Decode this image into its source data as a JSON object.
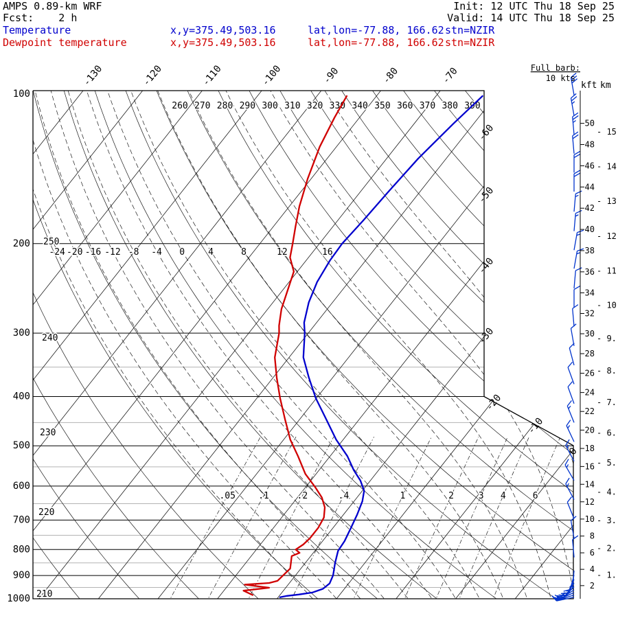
{
  "header": {
    "model": "AMPS 0.89-km WRF",
    "fcst": "Fcst:    2 h",
    "init": "Init: 12 UTC Thu 18 Sep 25",
    "valid": "Valid: 14 UTC Thu 18 Sep 25",
    "temp_label": "Temperature",
    "temp_xy": "x,y=375.49,503.16",
    "temp_latlon": "lat,lon=-77.88, 166.62",
    "temp_stn": "stn=NZIR",
    "dewp_label": "Dewpoint temperature",
    "dewp_xy": "x,y=375.49,503.16",
    "dewp_latlon": "lat,lon=-77.88, 166.62",
    "dewp_stn": "stn=NZIR"
  },
  "legend": {
    "full_barb": "Full barb:",
    "full_barb_value": "10 kts"
  },
  "axes": {
    "kft_label": "kft",
    "km_label": "km",
    "kft_ticks": [
      50,
      48,
      46,
      44,
      42,
      40,
      38,
      36,
      34,
      32,
      30,
      28,
      26,
      24,
      22,
      20,
      18,
      16,
      14,
      12,
      10,
      8,
      6,
      4,
      2
    ],
    "km_ticks": [
      15,
      14,
      13,
      12,
      11,
      10,
      9,
      8,
      7,
      6,
      5,
      4,
      3,
      2,
      1
    ]
  },
  "colors": {
    "temperature": "#0000cd",
    "dewpoint": "#d00000",
    "wind": "#0033cc",
    "grid": "#1a1a1a",
    "pressure_minor": "#b3b3b3"
  },
  "chart_data": {
    "type": "skewt-log-p",
    "station": "NZIR",
    "pressure_axis": {
      "unit": "hPa",
      "ticks": [
        100,
        200,
        300,
        400,
        500,
        600,
        700,
        800,
        900,
        1000
      ],
      "minor_ticks": [
        350,
        450,
        550,
        650,
        750,
        850,
        950
      ],
      "range": [
        100,
        1000
      ]
    },
    "temperature_axis": {
      "unit": "C",
      "isotherm_step": 10,
      "isotherm_range": [
        -140,
        30
      ],
      "top_labels": [
        -130,
        -120,
        -110,
        -100,
        -90,
        -80,
        -70
      ],
      "right_labels": [
        -60,
        -50,
        -40,
        -30,
        -20,
        -10,
        0
      ]
    },
    "dry_adiabats": {
      "unit": "K",
      "step": 10,
      "range": [
        210,
        400
      ],
      "top_labels": [
        260,
        270,
        280,
        290,
        300,
        310,
        320,
        330,
        340,
        350,
        360,
        370,
        380,
        390
      ],
      "left_labels": [
        250,
        240,
        230,
        220,
        210
      ]
    },
    "moist_adiabats": {
      "unit": "C",
      "step": 4,
      "range": [
        -24,
        24
      ],
      "labels": [
        -24,
        -20,
        -16,
        -12,
        -8,
        -4,
        0,
        4,
        8,
        12,
        16
      ]
    },
    "mixing_ratio_lines": {
      "unit": "g/kg",
      "values": [
        0.05,
        0.1,
        0.2,
        0.4,
        1,
        2,
        3,
        4,
        6
      ],
      "labels": [
        ".05",
        ".1",
        ".2",
        ".4",
        "1",
        "2",
        "3",
        "4",
        "6"
      ]
    },
    "series": [
      {
        "name": "Temperature",
        "color": "#0000cd",
        "points": [
          [
            102.5,
            -62.2
          ],
          [
            116,
            -63.4
          ],
          [
            136,
            -64.7
          ],
          [
            158,
            -65.3
          ],
          [
            180,
            -65.7
          ],
          [
            200,
            -66.2
          ],
          [
            216,
            -66.0
          ],
          [
            238,
            -65.3
          ],
          [
            261,
            -64.0
          ],
          [
            286,
            -62.1
          ],
          [
            300,
            -60.6
          ],
          [
            335,
            -57.6
          ],
          [
            367,
            -54.0
          ],
          [
            403,
            -50.1
          ],
          [
            443,
            -45.6
          ],
          [
            486,
            -41.2
          ],
          [
            524,
            -37.1
          ],
          [
            558,
            -34.2
          ],
          [
            585,
            -31.7
          ],
          [
            613,
            -29.7
          ],
          [
            643,
            -28.6
          ],
          [
            683,
            -27.7
          ],
          [
            725,
            -27.0
          ],
          [
            770,
            -26.3
          ],
          [
            805,
            -26.1
          ],
          [
            850,
            -25.0
          ],
          [
            899,
            -23.7
          ],
          [
            933,
            -23.2
          ],
          [
            956,
            -23.6
          ],
          [
            972,
            -24.9
          ],
          [
            981,
            -26.9
          ],
          [
            987,
            -28.7
          ],
          [
            993,
            -29.7
          ]
        ]
      },
      {
        "name": "Dewpoint temperature",
        "color": "#d00000",
        "points": [
          [
            102.5,
            -85.0
          ],
          [
            113,
            -84.2
          ],
          [
            129,
            -82.8
          ],
          [
            149,
            -80.6
          ],
          [
            169,
            -78.3
          ],
          [
            185,
            -76.3
          ],
          [
            200,
            -74.5
          ],
          [
            213,
            -73.1
          ],
          [
            227,
            -70.6
          ],
          [
            245,
            -69.3
          ],
          [
            269,
            -67.7
          ],
          [
            290,
            -65.9
          ],
          [
            300,
            -64.9
          ],
          [
            335,
            -62.4
          ],
          [
            367,
            -59.4
          ],
          [
            403,
            -56.1
          ],
          [
            443,
            -52.5
          ],
          [
            486,
            -48.9
          ],
          [
            524,
            -45.4
          ],
          [
            568,
            -41.8
          ],
          [
            603,
            -38.4
          ],
          [
            632,
            -35.9
          ],
          [
            661,
            -34.1
          ],
          [
            692,
            -32.9
          ],
          [
            725,
            -32.5
          ],
          [
            759,
            -32.5
          ],
          [
            782,
            -32.8
          ],
          [
            800,
            -33.4
          ],
          [
            812,
            -32.3
          ],
          [
            824,
            -33.2
          ],
          [
            851,
            -32.4
          ],
          [
            872,
            -31.8
          ],
          [
            891,
            -32.0
          ],
          [
            922,
            -32.3
          ],
          [
            931,
            -33.4
          ],
          [
            938,
            -37.3
          ],
          [
            951,
            -32.8
          ],
          [
            964,
            -36.7
          ],
          [
            983,
            -34.6
          ]
        ]
      }
    ],
    "winds": {
      "unit": "kts",
      "full_barb": 10,
      "barbs": [
        [
          102,
          30,
          350
        ],
        [
          112,
          25,
          350
        ],
        [
          122,
          25,
          355
        ],
        [
          133,
          20,
          355
        ],
        [
          145,
          20,
          0
        ],
        [
          158,
          20,
          0
        ],
        [
          173,
          15,
          5
        ],
        [
          189,
          15,
          5
        ],
        [
          206,
          15,
          10
        ],
        [
          224,
          15,
          10
        ],
        [
          245,
          10,
          5
        ],
        [
          267,
          10,
          0
        ],
        [
          291,
          10,
          355
        ],
        [
          318,
          10,
          350
        ],
        [
          347,
          10,
          345
        ],
        [
          378,
          10,
          340
        ],
        [
          413,
          10,
          340
        ],
        [
          450,
          15,
          338
        ],
        [
          491,
          15,
          335
        ],
        [
          536,
          15,
          332
        ],
        [
          585,
          15,
          330
        ],
        [
          638,
          15,
          332
        ],
        [
          696,
          10,
          338
        ],
        [
          760,
          10,
          350
        ],
        [
          829,
          10,
          355
        ],
        [
          880,
          15,
          185
        ],
        [
          898,
          20,
          195
        ],
        [
          916,
          20,
          205
        ],
        [
          932,
          25,
          215
        ],
        [
          947,
          25,
          225
        ],
        [
          960,
          20,
          235
        ],
        [
          972,
          20,
          245
        ],
        [
          983,
          15,
          252
        ],
        [
          993,
          15,
          258
        ]
      ]
    }
  }
}
